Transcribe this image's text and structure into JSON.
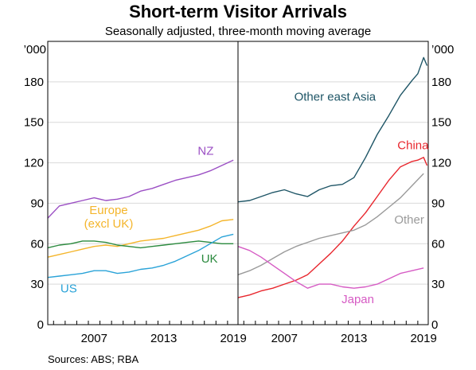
{
  "title": "Short-term Visitor Arrivals",
  "subtitle": "Seasonally adjusted, three-month moving average",
  "source": "Sources:   ABS; RBA",
  "chart_data": [
    {
      "type": "line",
      "panel": "left",
      "unit": "’000",
      "ylim": [
        0,
        210
      ],
      "yticks": [
        0,
        30,
        60,
        90,
        120,
        150,
        180
      ],
      "xlim": [
        2003.5,
        2019.9
      ],
      "xticks": [
        "2007",
        "2013",
        "2019"
      ],
      "grid": true,
      "series": [
        {
          "name": "NZ",
          "color": "#9b4fc4",
          "x": [
            2003.5,
            2004.5,
            2005.5,
            2006.5,
            2007.5,
            2008.5,
            2009.5,
            2010.5,
            2011.5,
            2012.5,
            2013.5,
            2014.5,
            2015.5,
            2016.5,
            2017.5,
            2018.5,
            2019.5
          ],
          "values": [
            79,
            88,
            90,
            92,
            94,
            92,
            93,
            95,
            99,
            101,
            104,
            107,
            109,
            111,
            114,
            118,
            122
          ]
        },
        {
          "name": "Europe",
          "name2": "(excl UK)",
          "color": "#f4b52b",
          "x": [
            2003.5,
            2004.5,
            2005.5,
            2006.5,
            2007.5,
            2008.5,
            2009.5,
            2010.5,
            2011.5,
            2012.5,
            2013.5,
            2014.5,
            2015.5,
            2016.5,
            2017.5,
            2018.5,
            2019.5
          ],
          "values": [
            50,
            52,
            54,
            56,
            58,
            59,
            58,
            60,
            62,
            63,
            64,
            66,
            68,
            70,
            73,
            77,
            78
          ]
        },
        {
          "name": "UK",
          "color": "#2b8a3e",
          "x": [
            2003.5,
            2004.5,
            2005.5,
            2006.5,
            2007.5,
            2008.5,
            2009.5,
            2010.5,
            2011.5,
            2012.5,
            2013.5,
            2014.5,
            2015.5,
            2016.5,
            2017.5,
            2018.5,
            2019.5
          ],
          "values": [
            57,
            59,
            60,
            62,
            62,
            61,
            59,
            58,
            57,
            58,
            59,
            60,
            61,
            62,
            61,
            60,
            60
          ]
        },
        {
          "name": "US",
          "color": "#2aa3d8",
          "x": [
            2003.5,
            2004.5,
            2005.5,
            2006.5,
            2007.5,
            2008.5,
            2009.5,
            2010.5,
            2011.5,
            2012.5,
            2013.5,
            2014.5,
            2015.5,
            2016.5,
            2017.5,
            2018.5,
            2019.5
          ],
          "values": [
            35,
            36,
            37,
            38,
            40,
            40,
            38,
            39,
            41,
            42,
            44,
            47,
            51,
            55,
            60,
            65,
            67
          ]
        }
      ]
    },
    {
      "type": "line",
      "panel": "right",
      "unit": "’000",
      "ylim": [
        0,
        210
      ],
      "yticks": [
        0,
        30,
        60,
        90,
        120,
        150,
        180
      ],
      "xlim": [
        2003.5,
        2019.9
      ],
      "xticks": [
        "2007",
        "2013",
        "2019"
      ],
      "grid": true,
      "series": [
        {
          "name": "Other east Asia",
          "color": "#1e5566",
          "x": [
            2003.5,
            2004.5,
            2005.5,
            2006.5,
            2007.5,
            2008.5,
            2009.5,
            2010.5,
            2011.5,
            2012.5,
            2013.5,
            2014.5,
            2015.5,
            2016.5,
            2017.5,
            2018.5,
            2019.0,
            2019.5,
            2019.8
          ],
          "values": [
            91,
            92,
            95,
            98,
            100,
            97,
            95,
            100,
            103,
            104,
            109,
            124,
            141,
            155,
            170,
            181,
            186,
            198,
            192
          ]
        },
        {
          "name": "China",
          "color": "#e8262d",
          "x": [
            2003.5,
            2004.5,
            2005.5,
            2006.5,
            2007.5,
            2008.5,
            2009.5,
            2010.5,
            2011.5,
            2012.5,
            2013.5,
            2014.5,
            2015.5,
            2016.5,
            2017.5,
            2018.5,
            2019.0,
            2019.5,
            2019.8
          ],
          "values": [
            20,
            22,
            25,
            27,
            30,
            33,
            37,
            45,
            53,
            62,
            73,
            83,
            95,
            107,
            117,
            121,
            122,
            124,
            118
          ]
        },
        {
          "name": "Other",
          "color": "#9a9a9a",
          "x": [
            2003.5,
            2004.5,
            2005.5,
            2006.5,
            2007.5,
            2008.5,
            2009.5,
            2010.5,
            2011.5,
            2012.5,
            2013.5,
            2014.5,
            2015.5,
            2016.5,
            2017.5,
            2018.5,
            2019.5
          ],
          "values": [
            37,
            40,
            44,
            49,
            54,
            58,
            61,
            64,
            66,
            68,
            70,
            74,
            80,
            87,
            94,
            103,
            112
          ]
        },
        {
          "name": "Japan",
          "color": "#d65bc4",
          "x": [
            2003.5,
            2004.5,
            2005.5,
            2006.5,
            2007.5,
            2008.5,
            2009.5,
            2010.5,
            2011.5,
            2012.5,
            2013.5,
            2014.5,
            2015.5,
            2016.5,
            2017.5,
            2018.5,
            2019.5
          ],
          "values": [
            58,
            55,
            50,
            44,
            38,
            32,
            27,
            30,
            30,
            28,
            27,
            28,
            30,
            34,
            38,
            40,
            42
          ]
        }
      ]
    }
  ]
}
